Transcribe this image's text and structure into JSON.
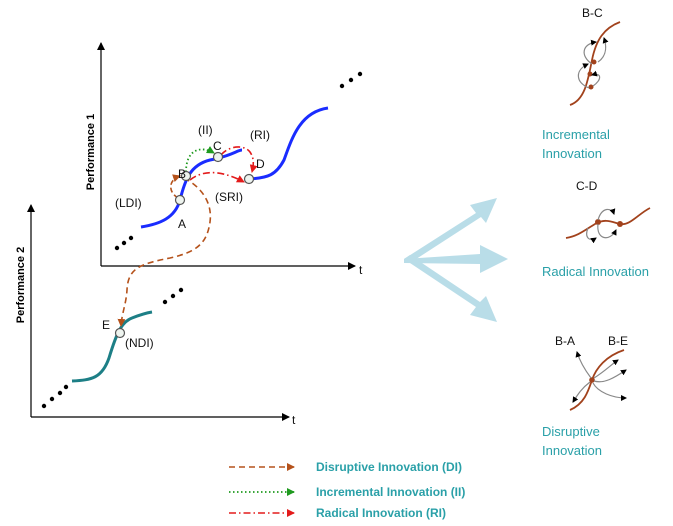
{
  "axes": {
    "perf1_label": "Performance 1",
    "perf2_label": "Performance 2",
    "t1_label": "t",
    "t2_label": "t"
  },
  "points": {
    "A": "A",
    "B": "B",
    "C": "C",
    "D": "D",
    "E": "E"
  },
  "annotations": {
    "ii": "(II)",
    "ri": "(RI)",
    "ldi": "(LDI)",
    "sri": "(SRI)",
    "ndi": "(NDI)"
  },
  "panels": {
    "bc_title": "B-C",
    "bc_caption_1": "Incremental",
    "bc_caption_2": "Innovation",
    "cd_title": "C-D",
    "cd_caption": "Radical Innovation",
    "ba_title": "B-A",
    "be_title": "B-E",
    "disruptive_caption_1": "Disruptive",
    "disruptive_caption_2": "Innovation"
  },
  "legend": [
    {
      "label": "Disruptive Innovation (DI)",
      "color": "#b5521b",
      "dash": "6,4"
    },
    {
      "label": "Incremental Innovation (II)",
      "color": "#1f9a1f",
      "dash": "1.5,2.5"
    },
    {
      "label": "Radical Innovation (RI)",
      "color": "#e31b1b",
      "dash": "7,3,1.5,3"
    }
  ],
  "colors": {
    "blue_curve": "#1a2cff",
    "teal_curve": "#1d7f86",
    "brown_curve": "#a2421c",
    "arrow_fill": "#b9dde8",
    "caption": "#2aa0a8"
  }
}
